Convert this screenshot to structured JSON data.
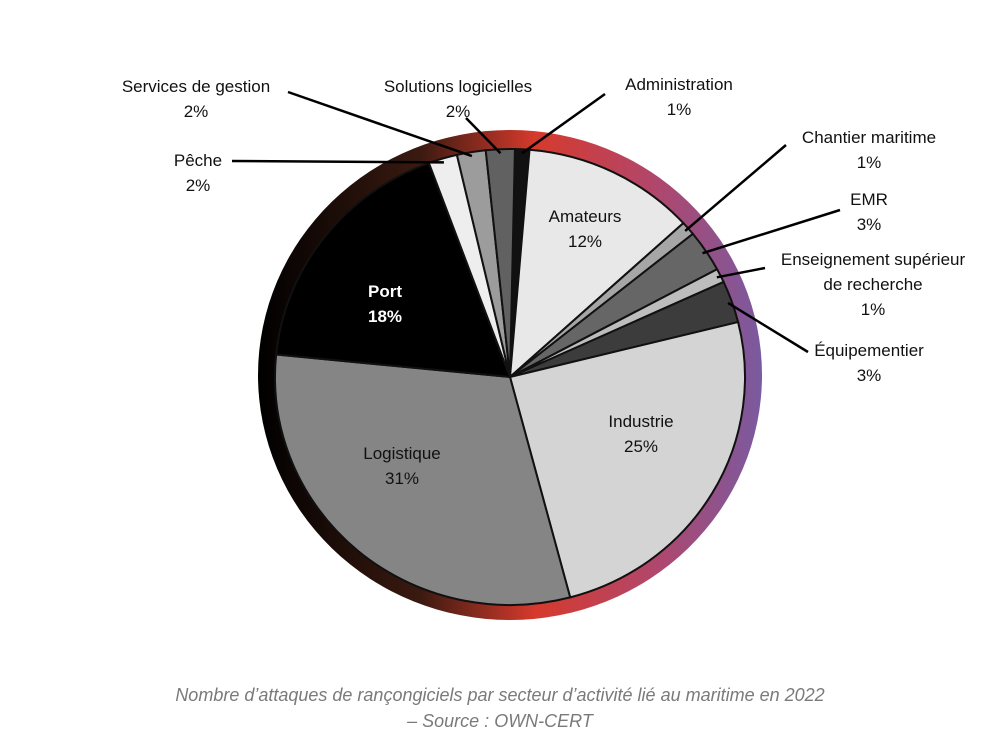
{
  "chart_data": {
    "type": "pie",
    "title": "",
    "slices": [
      {
        "label": "Administration",
        "value": 1,
        "value_label": "1%",
        "color": "#111111"
      },
      {
        "label": "Amateurs",
        "value": 12,
        "value_label": "12%",
        "color": "#e8e8e8"
      },
      {
        "label": "Chantier maritime",
        "value": 1,
        "value_label": "1%",
        "color": "#a6a6a6"
      },
      {
        "label": "EMR",
        "value": 3,
        "value_label": "3%",
        "color": "#666666"
      },
      {
        "label": "Enseignement supérieur de recherche",
        "value": 1,
        "value_label": "1%",
        "color": "#bdbdbd"
      },
      {
        "label": "Équipementier",
        "value": 3,
        "value_label": "3%",
        "color": "#3c3c3c"
      },
      {
        "label": "Industrie",
        "value": 25,
        "value_label": "25%",
        "color": "#d4d4d4"
      },
      {
        "label": "Logistique",
        "value": 31,
        "value_label": "31%",
        "color": "#858585"
      },
      {
        "label": "Port",
        "value": 18,
        "value_label": "18%",
        "color": "#000000"
      },
      {
        "label": "Pêche",
        "value": 2,
        "value_label": "2%",
        "color": "#eeeeee"
      },
      {
        "label": "Services de gestion",
        "value": 2,
        "value_label": "2%",
        "color": "#9c9c9c"
      },
      {
        "label": "Solutions logicielles",
        "value": 2,
        "value_label": "2%",
        "color": "#616161"
      }
    ]
  },
  "caption": {
    "line1": "Nombre d’attaques de rançongiciels par secteur d’activité lié au maritime en 2022",
    "line2": "– Source : OWN-CERT"
  }
}
